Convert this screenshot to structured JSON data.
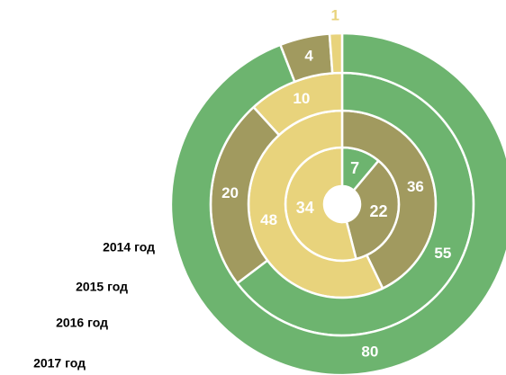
{
  "chart_data": {
    "type": "nested_donut",
    "series": [
      {
        "name": "2014 год",
        "values": [
          7,
          22,
          34
        ],
        "colors": [
          "#6db46f",
          "#a19a5f",
          "#e8d37c"
        ]
      },
      {
        "name": "2015 год",
        "values": [
          36,
          48
        ],
        "colors": [
          "#a19a5f",
          "#e8d37c"
        ]
      },
      {
        "name": "2016 год",
        "values": [
          55,
          20,
          10
        ],
        "colors": [
          "#6db46f",
          "#a19a5f",
          "#e8d37c"
        ]
      },
      {
        "name": "2017 год",
        "values": [
          80,
          4,
          1
        ],
        "colors": [
          "#6db46f",
          "#a19a5f",
          "#e8d37c"
        ]
      }
    ]
  }
}
